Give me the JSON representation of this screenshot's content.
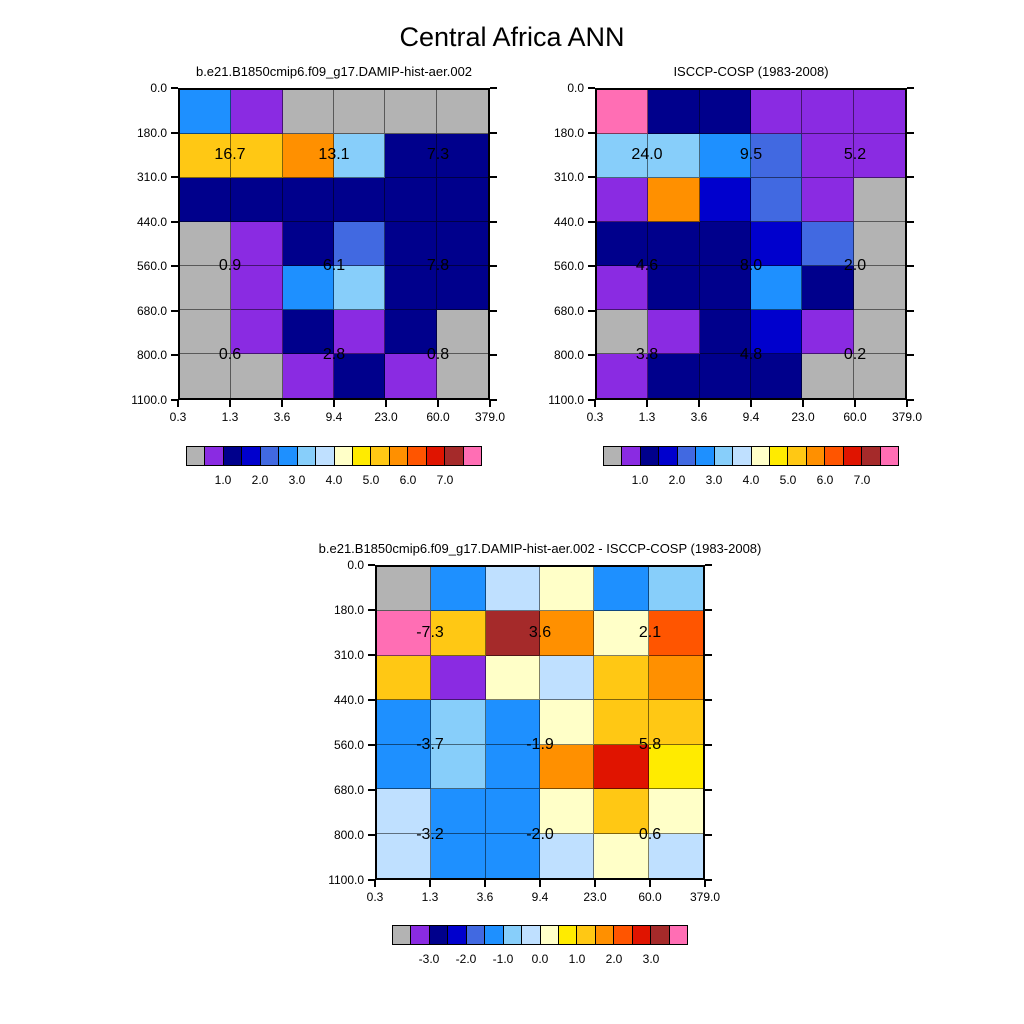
{
  "title": "Central Africa ANN",
  "palette": {
    "gray": "#B3B3B3",
    "purple": "#8A2BE2",
    "navy": "#00008C",
    "blue": "#0000CD",
    "royal": "#4169E1",
    "dodger": "#1E90FF",
    "sky": "#87CEFA",
    "paleblue": "#BFE0FF",
    "cream": "#FFFFC8",
    "yellow": "#FFEB00",
    "gold": "#FFC814",
    "orange": "#FF9000",
    "ored": "#FF5500",
    "red": "#E01400",
    "dred": "#A52A2A",
    "pink": "#FF6EB4"
  },
  "colorbar_colors": [
    "gray",
    "purple",
    "navy",
    "blue",
    "royal",
    "dodger",
    "sky",
    "paleblue",
    "cream",
    "yellow",
    "gold",
    "orange",
    "ored",
    "red",
    "dred",
    "pink"
  ],
  "axis": {
    "x_labels": [
      "0.3",
      "1.3",
      "3.6",
      "9.4",
      "23.0",
      "60.0",
      "379.0"
    ],
    "y_labels": [
      "0.0",
      "180.0",
      "310.0",
      "440.0",
      "560.0",
      "680.0",
      "800.0",
      "1100.0"
    ]
  },
  "chart_data": [
    {
      "type": "heatmap",
      "title": "b.e21.B1850cmip6.f09_g17.DAMIP-hist-aer.002",
      "x_bin_edges": [
        0.3,
        1.3,
        3.6,
        9.4,
        23.0,
        60.0,
        379.0
      ],
      "y_bin_edges": [
        0.0,
        180.0,
        310.0,
        440.0,
        560.0,
        680.0,
        800.0,
        1100.0
      ],
      "grid": [
        [
          "dodger",
          "purple",
          "gray",
          "gray",
          "gray",
          "gray"
        ],
        [
          "gold",
          "gold",
          "orange",
          "sky",
          "navy",
          "navy"
        ],
        [
          "navy",
          "navy",
          "navy",
          "navy",
          "navy",
          "navy"
        ],
        [
          "gray",
          "purple",
          "navy",
          "royal",
          "navy",
          "navy"
        ],
        [
          "gray",
          "purple",
          "dodger",
          "sky",
          "navy",
          "navy"
        ],
        [
          "gray",
          "purple",
          "navy",
          "purple",
          "navy",
          "gray"
        ],
        [
          "gray",
          "gray",
          "purple",
          "navy",
          "purple",
          "gray"
        ]
      ],
      "numbers": [
        {
          "value": "16.7",
          "xf": 0.1667,
          "yf": 0.2143
        },
        {
          "value": "13.1",
          "xf": 0.5,
          "yf": 0.2143
        },
        {
          "value": "7.3",
          "xf": 0.8333,
          "yf": 0.2143
        },
        {
          "value": "0.9",
          "xf": 0.1667,
          "yf": 0.5714
        },
        {
          "value": "6.1",
          "xf": 0.5,
          "yf": 0.5714
        },
        {
          "value": "7.8",
          "xf": 0.8333,
          "yf": 0.5714
        },
        {
          "value": "0.6",
          "xf": 0.1667,
          "yf": 0.8571
        },
        {
          "value": "2.8",
          "xf": 0.5,
          "yf": 0.8571
        },
        {
          "value": "0.8",
          "xf": 0.8333,
          "yf": 0.8571
        }
      ],
      "colorbar_ticks": [
        "1.0",
        "2.0",
        "3.0",
        "4.0",
        "5.0",
        "6.0",
        "7.0"
      ]
    },
    {
      "type": "heatmap",
      "title": "ISCCP-COSP (1983-2008)",
      "x_bin_edges": [
        0.3,
        1.3,
        3.6,
        9.4,
        23.0,
        60.0,
        379.0
      ],
      "y_bin_edges": [
        0.0,
        180.0,
        310.0,
        440.0,
        560.0,
        680.0,
        800.0,
        1100.0
      ],
      "grid": [
        [
          "pink",
          "navy",
          "navy",
          "purple",
          "purple",
          "purple"
        ],
        [
          "sky",
          "sky",
          "dodger",
          "royal",
          "purple",
          "purple"
        ],
        [
          "purple",
          "orange",
          "blue",
          "royal",
          "purple",
          "gray"
        ],
        [
          "navy",
          "navy",
          "navy",
          "blue",
          "royal",
          "gray"
        ],
        [
          "purple",
          "navy",
          "navy",
          "dodger",
          "navy",
          "gray"
        ],
        [
          "gray",
          "purple",
          "navy",
          "blue",
          "purple",
          "gray"
        ],
        [
          "purple",
          "navy",
          "navy",
          "navy",
          "gray",
          "gray"
        ]
      ],
      "numbers": [
        {
          "value": "24.0",
          "xf": 0.1667,
          "yf": 0.2143
        },
        {
          "value": "9.5",
          "xf": 0.5,
          "yf": 0.2143
        },
        {
          "value": "5.2",
          "xf": 0.8333,
          "yf": 0.2143
        },
        {
          "value": "4.6",
          "xf": 0.1667,
          "yf": 0.5714
        },
        {
          "value": "8.0",
          "xf": 0.5,
          "yf": 0.5714
        },
        {
          "value": "2.0",
          "xf": 0.8333,
          "yf": 0.5714
        },
        {
          "value": "3.8",
          "xf": 0.1667,
          "yf": 0.8571
        },
        {
          "value": "4.8",
          "xf": 0.5,
          "yf": 0.8571
        },
        {
          "value": "0.2",
          "xf": 0.8333,
          "yf": 0.8571
        }
      ],
      "colorbar_ticks": [
        "1.0",
        "2.0",
        "3.0",
        "4.0",
        "5.0",
        "6.0",
        "7.0"
      ]
    },
    {
      "type": "heatmap",
      "title": "b.e21.B1850cmip6.f09_g17.DAMIP-hist-aer.002 - ISCCP-COSP (1983-2008)",
      "x_bin_edges": [
        0.3,
        1.3,
        3.6,
        9.4,
        23.0,
        60.0,
        379.0
      ],
      "y_bin_edges": [
        0.0,
        180.0,
        310.0,
        440.0,
        560.0,
        680.0,
        800.0,
        1100.0
      ],
      "grid": [
        [
          "gray",
          "dodger",
          "paleblue",
          "cream",
          "dodger",
          "sky"
        ],
        [
          "pink",
          "gold",
          "dred",
          "orange",
          "cream",
          "ored"
        ],
        [
          "gold",
          "purple",
          "cream",
          "paleblue",
          "gold",
          "orange"
        ],
        [
          "dodger",
          "sky",
          "dodger",
          "cream",
          "gold",
          "gold"
        ],
        [
          "dodger",
          "sky",
          "dodger",
          "orange",
          "red",
          "yellow"
        ],
        [
          "paleblue",
          "dodger",
          "dodger",
          "cream",
          "gold",
          "cream"
        ],
        [
          "paleblue",
          "dodger",
          "dodger",
          "paleblue",
          "cream",
          "paleblue"
        ]
      ],
      "numbers": [
        {
          "value": "-7.3",
          "xf": 0.1667,
          "yf": 0.2143
        },
        {
          "value": "3.6",
          "xf": 0.5,
          "yf": 0.2143
        },
        {
          "value": "2.1",
          "xf": 0.8333,
          "yf": 0.2143
        },
        {
          "value": "-3.7",
          "xf": 0.1667,
          "yf": 0.5714
        },
        {
          "value": "-1.9",
          "xf": 0.5,
          "yf": 0.5714
        },
        {
          "value": "5.8",
          "xf": 0.8333,
          "yf": 0.5714
        },
        {
          "value": "-3.2",
          "xf": 0.1667,
          "yf": 0.8571
        },
        {
          "value": "-2.0",
          "xf": 0.5,
          "yf": 0.8571
        },
        {
          "value": "0.6",
          "xf": 0.8333,
          "yf": 0.8571
        }
      ],
      "colorbar_ticks": [
        "-3.0",
        "-2.0",
        "-1.0",
        "0.0",
        "1.0",
        "2.0",
        "3.0"
      ]
    }
  ]
}
